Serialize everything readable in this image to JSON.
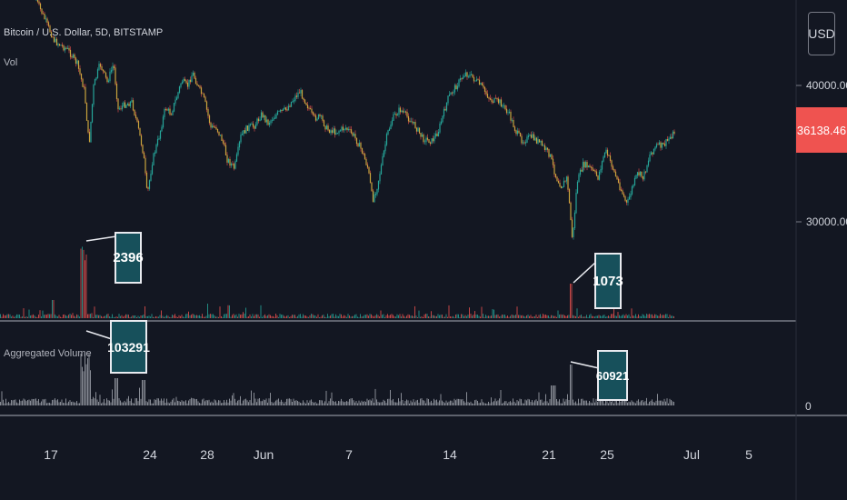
{
  "header": {
    "symbol_title": "Bitcoin / U.S. Dollar, 5D, BITSTAMP",
    "volume_label": "Vol",
    "aggregated_label": "Aggregated Volume"
  },
  "price_axis": {
    "currency": "USD",
    "ticks": [
      "40000.00",
      "30000.00"
    ],
    "last_price": "36138.46",
    "volume_pane_tick": "0"
  },
  "time_axis": {
    "ticks": [
      "17",
      "24",
      "28",
      "Jun",
      "7",
      "14",
      "21",
      "25",
      "Jul",
      "5"
    ]
  },
  "annotations": {
    "volume_spike_1": "2396",
    "volume_spike_2": "1073",
    "aggregated_spike_1": "103291",
    "aggregated_spike_2": "60921"
  },
  "colors": {
    "background": "#131722",
    "up_candle": "#26a69a",
    "down_candle": "#ef5350",
    "price_line": "#c9a53d",
    "callout_fill": "#17505b",
    "last_price_badge": "#ef5350",
    "aggregated_bars": "#9598a1"
  }
}
